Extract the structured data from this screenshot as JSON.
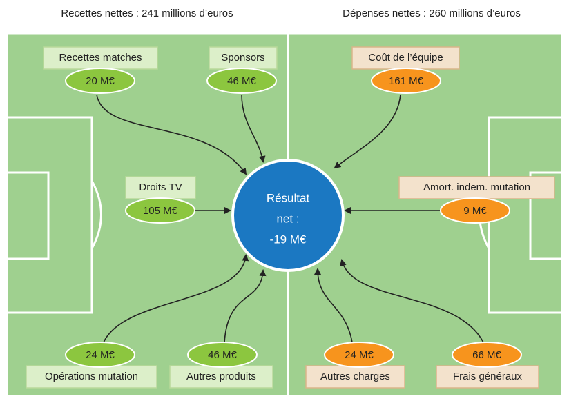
{
  "headers": [
    "Recettes nettes : 241 millions d’euros",
    "Dépenses nettes : 260 millions d’euros"
  ],
  "center": [
    "Résultat",
    "net :",
    "-19 M€"
  ],
  "nodes": [
    {
      "label": "Recettes matches",
      "value": "20 M€"
    },
    {
      "label": "Sponsors",
      "value": "46 M€"
    },
    {
      "label": "Droits TV",
      "value": "105 M€"
    },
    {
      "label": "Opérations mutation",
      "value": "24 M€"
    },
    {
      "label": "Autres produits",
      "value": "46 M€"
    },
    {
      "label": "Coût de l’équipe",
      "value": "161 M€"
    },
    {
      "label": "Amort. indem. mutation",
      "value": "9 M€"
    },
    {
      "label": "Autres charges",
      "value": "24 M€"
    },
    {
      "label": "Frais généraux",
      "value": "66 M€"
    }
  ]
}
